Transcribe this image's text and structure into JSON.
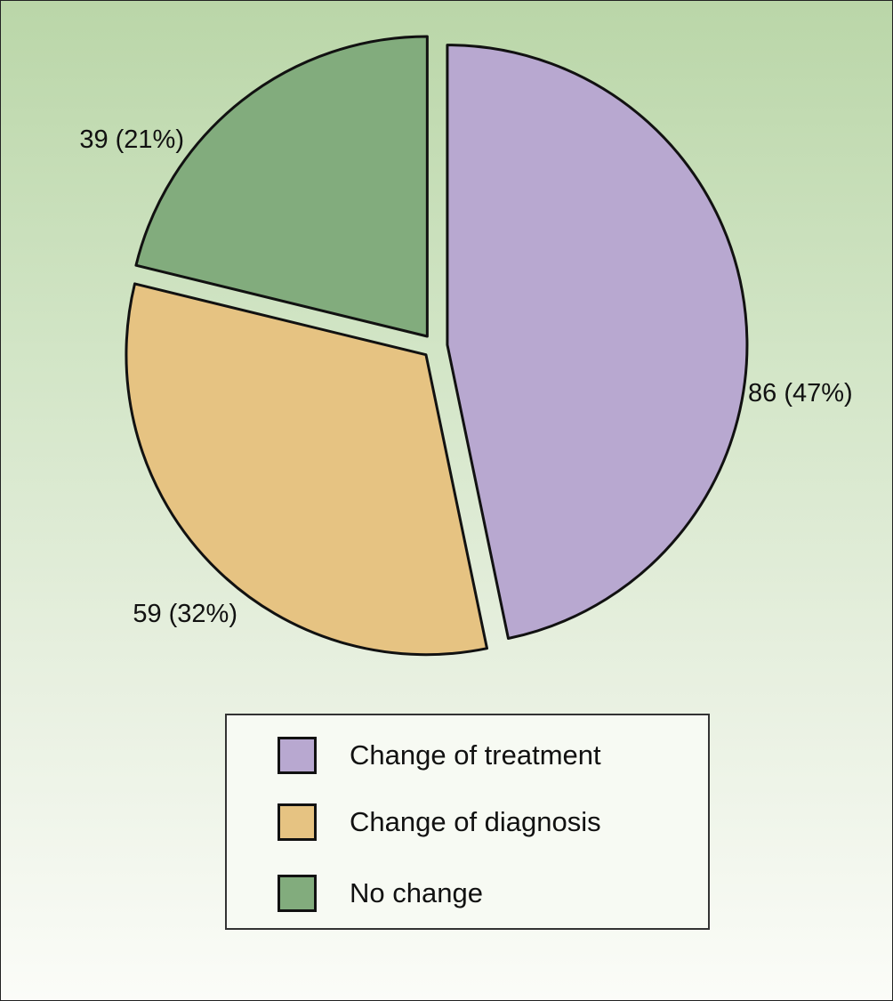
{
  "chart_data": {
    "type": "pie",
    "title": "",
    "slices": [
      {
        "name": "Change of treatment",
        "value": 86,
        "percent": 47,
        "label": "86 (47%)",
        "color": "#b8a8d0"
      },
      {
        "name": "Change of diagnosis",
        "value": 59,
        "percent": 32,
        "label": "59 (32%)",
        "color": "#e6c382"
      },
      {
        "name": "No change",
        "value": 39,
        "percent": 21,
        "label": "39 (21%)",
        "color": "#82ac7d"
      }
    ],
    "exploded": true,
    "legend_position": "bottom"
  },
  "legend": {
    "items": [
      {
        "label": "Change of treatment",
        "color": "#b8a8d0"
      },
      {
        "label": "Change of diagnosis",
        "color": "#e6c382"
      },
      {
        "label": "No change",
        "color": "#82ac7d"
      }
    ]
  },
  "colors": {
    "background_top": "#bad6a8",
    "background_bottom": "#fbfcf8",
    "outline": "#111111"
  }
}
